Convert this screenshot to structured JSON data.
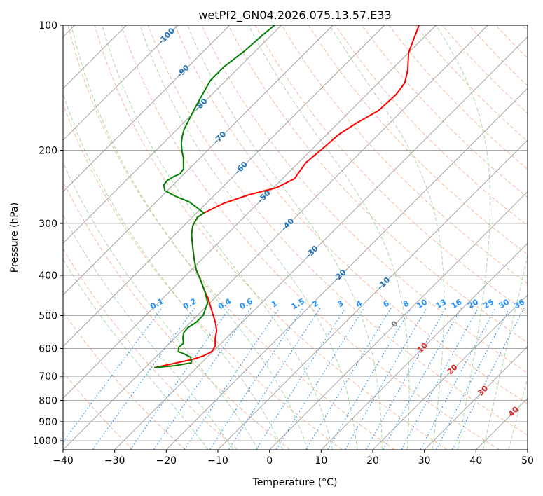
{
  "chart_data": {
    "type": "line",
    "subtype": "skew-t log-p",
    "title": "wetPf2_GN04.2026.075.13.57.E33",
    "xlabel": "Temperature (°C)",
    "ylabel": "Pressure (hPa)",
    "xlim": [
      -40,
      50
    ],
    "ylim": [
      1050,
      100
    ],
    "xticks": [
      -40,
      -30,
      -20,
      -10,
      0,
      10,
      20,
      30,
      40,
      50
    ],
    "yticks": [
      100,
      200,
      300,
      400,
      500,
      600,
      700,
      800,
      900,
      1000
    ],
    "grid": true,
    "series": [
      {
        "name": "Temperature",
        "color": "#ff0000",
        "units": [
          "hPa",
          "°C"
        ],
        "points": [
          [
            100,
            -53.3
          ],
          [
            116.4,
            -50.0
          ],
          [
            128.2,
            -46.8
          ],
          [
            137.5,
            -44.9
          ],
          [
            146.9,
            -44.3
          ],
          [
            160.6,
            -44.6
          ],
          [
            171.6,
            -46.4
          ],
          [
            183.3,
            -47.7
          ],
          [
            198.1,
            -48.1
          ],
          [
            214.1,
            -48.6
          ],
          [
            234.1,
            -47.7
          ],
          [
            246.1,
            -49.4
          ],
          [
            255.9,
            -53.4
          ],
          [
            268.1,
            -56.6
          ],
          [
            283.1,
            -58.6
          ],
          [
            289.8,
            -59.0
          ],
          [
            303.6,
            -58.3
          ],
          [
            319.3,
            -56.8
          ],
          [
            345.1,
            -53.8
          ],
          [
            365.9,
            -51.5
          ],
          [
            387.7,
            -49.1
          ],
          [
            411.0,
            -46.2
          ],
          [
            435.6,
            -43.4
          ],
          [
            452.9,
            -41.4
          ],
          [
            485.8,
            -38.2
          ],
          [
            518.8,
            -35.2
          ],
          [
            543.6,
            -33.3
          ],
          [
            567.4,
            -32.1
          ],
          [
            591.9,
            -30.6
          ],
          [
            610.6,
            -30.2
          ],
          [
            625.1,
            -31.0
          ],
          [
            637.4,
            -32.4
          ],
          [
            667.6,
            -38.2
          ]
        ]
      },
      {
        "name": "Dewpoint",
        "color": "#008000",
        "units": [
          "hPa",
          "°C"
        ],
        "points": [
          [
            100,
            -81.3
          ],
          [
            105.6,
            -81.7
          ],
          [
            115.0,
            -82.1
          ],
          [
            125.8,
            -83.0
          ],
          [
            135.9,
            -83.0
          ],
          [
            151.0,
            -81.4
          ],
          [
            158.8,
            -80.6
          ],
          [
            168.3,
            -79.6
          ],
          [
            178.4,
            -78.6
          ],
          [
            185.4,
            -77.6
          ],
          [
            192.8,
            -76.4
          ],
          [
            202.0,
            -74.6
          ],
          [
            208.3,
            -73.3
          ],
          [
            221.7,
            -71.1
          ],
          [
            227.8,
            -70.8
          ],
          [
            231.3,
            -71.5
          ],
          [
            236.8,
            -72.0
          ],
          [
            242.4,
            -71.8
          ],
          [
            250.0,
            -70.5
          ],
          [
            257.9,
            -67.4
          ],
          [
            266.1,
            -63.6
          ],
          [
            283.1,
            -58.6
          ],
          [
            289.8,
            -59.0
          ],
          [
            303.6,
            -58.3
          ],
          [
            319.3,
            -56.8
          ],
          [
            345.1,
            -53.8
          ],
          [
            365.9,
            -51.5
          ],
          [
            387.7,
            -49.1
          ],
          [
            411.0,
            -46.2
          ],
          [
            435.6,
            -43.4
          ],
          [
            465.3,
            -40.5
          ],
          [
            499.1,
            -38.9
          ],
          [
            518.8,
            -38.9
          ],
          [
            535.2,
            -39.5
          ],
          [
            549.9,
            -39.3
          ],
          [
            565.1,
            -38.5
          ],
          [
            583.0,
            -37.3
          ],
          [
            596.8,
            -37.4
          ],
          [
            610.6,
            -36.7
          ],
          [
            617.8,
            -35.2
          ],
          [
            630.0,
            -33.2
          ],
          [
            649.8,
            -32.0
          ],
          [
            660.1,
            -34.6
          ],
          [
            667.6,
            -38.2
          ]
        ]
      }
    ],
    "isotherm_labels": [
      "-100",
      "-90",
      "-80",
      "-70",
      "-60",
      "-50",
      "-40",
      "-30",
      "-20",
      "-10",
      "0",
      "10",
      "20",
      "30",
      "40"
    ],
    "isotherm_label_values": [
      -100,
      -90,
      -80,
      -70,
      -60,
      -50,
      -40,
      -30,
      -20,
      -10,
      0,
      10,
      20,
      30,
      40
    ],
    "mixing_ratio_labels": [
      "0.1",
      "0.2",
      "0.4",
      "0.6",
      "1",
      "1.5",
      "2",
      "3",
      "4",
      "6",
      "8",
      "10",
      "13",
      "16",
      "20",
      "25",
      "30",
      "36"
    ],
    "mixing_ratio_values": [
      0.1,
      0.2,
      0.4,
      0.6,
      1,
      1.5,
      2,
      3,
      4,
      6,
      8,
      10,
      13,
      16,
      20,
      25,
      30,
      36
    ],
    "colors": {
      "temperature": "#ff0000",
      "dewpoint": "#008000",
      "dry_adiabat": "#f4a582",
      "moist_adiabat": "#8fcf8f",
      "mixing_ratio": "#1e90ff",
      "isotherm": "#999999",
      "cold_label": "#1f6fb4",
      "zero_label": "#777777",
      "warm_label": "#d62728"
    }
  }
}
